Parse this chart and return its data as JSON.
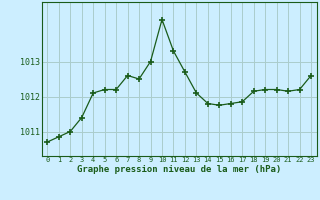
{
  "x": [
    0,
    1,
    2,
    3,
    4,
    5,
    6,
    7,
    8,
    9,
    10,
    11,
    12,
    13,
    14,
    15,
    16,
    17,
    18,
    19,
    20,
    21,
    22,
    23
  ],
  "y": [
    1010.7,
    1010.85,
    1011.0,
    1011.4,
    1012.1,
    1012.2,
    1012.2,
    1012.6,
    1012.5,
    1013.0,
    1014.2,
    1013.3,
    1012.7,
    1012.1,
    1011.8,
    1011.75,
    1011.8,
    1011.85,
    1012.15,
    1012.2,
    1012.2,
    1012.15,
    1012.2,
    1012.6
  ],
  "line_color": "#1a5c1a",
  "marker": "+",
  "marker_size": 4,
  "bg_color": "#cceeff",
  "grid_color": "#aacccc",
  "xlabel": "Graphe pression niveau de la mer (hPa)",
  "xlabel_color": "#1a5c1a",
  "tick_color": "#1a5c1a",
  "yticks": [
    1011,
    1012,
    1013
  ],
  "ylim": [
    1010.3,
    1014.7
  ],
  "xlim": [
    -0.5,
    23.5
  ],
  "title": ""
}
